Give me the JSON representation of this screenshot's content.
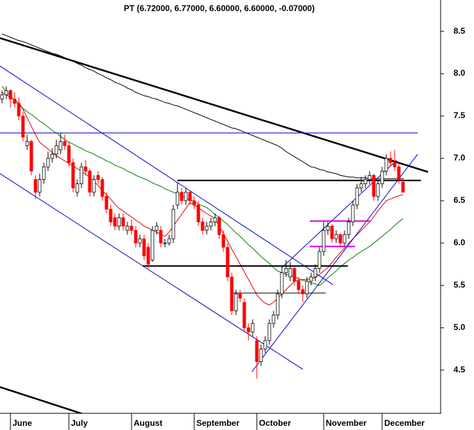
{
  "chart_data": {
    "type": "candlestick",
    "title": "PT (6.72000, 6.77000, 6.60000, 6.60000, -0.07000)",
    "categories": [
      null,
      null,
      "June",
      null,
      null,
      null,
      null,
      null,
      null,
      null,
      null,
      null,
      null,
      null,
      null,
      null,
      "July",
      null,
      null,
      null,
      null,
      null,
      null,
      null,
      null,
      null,
      null,
      null,
      null,
      null,
      null,
      "August",
      null,
      null,
      null,
      null,
      null,
      null,
      null,
      null,
      null,
      null,
      null,
      null,
      null,
      null,
      "September",
      null,
      null,
      null,
      null,
      null,
      null,
      null,
      null,
      null,
      null,
      null,
      null,
      null,
      null,
      "October",
      null,
      null,
      null,
      null,
      null,
      null,
      null,
      null,
      null,
      null,
      null,
      null,
      null,
      null,
      null,
      "November",
      null,
      null,
      null,
      null,
      null,
      null,
      null,
      null,
      null,
      null,
      null,
      null,
      null,
      "December",
      null,
      null,
      null,
      null,
      null
    ],
    "ohlc": [
      [
        7.7,
        7.8,
        7.65,
        7.75
      ],
      [
        7.75,
        7.85,
        7.7,
        7.8
      ],
      [
        7.8,
        7.82,
        7.6,
        7.7
      ],
      [
        7.7,
        7.78,
        7.6,
        7.65
      ],
      [
        7.65,
        7.72,
        7.45,
        7.5
      ],
      [
        7.5,
        7.55,
        7.2,
        7.25
      ],
      [
        7.15,
        7.28,
        7.1,
        7.2
      ],
      [
        7.2,
        7.22,
        6.8,
        6.85
      ],
      [
        6.75,
        6.8,
        6.52,
        6.6
      ],
      [
        6.6,
        6.82,
        6.55,
        6.75
      ],
      [
        6.75,
        6.95,
        6.7,
        6.9
      ],
      [
        6.9,
        7.08,
        6.85,
        7.0
      ],
      [
        7.0,
        7.12,
        6.95,
        7.05
      ],
      [
        7.05,
        7.22,
        7.0,
        7.15
      ],
      [
        7.1,
        7.3,
        7.05,
        7.2
      ],
      [
        7.2,
        7.28,
        7.1,
        7.15
      ],
      [
        7.15,
        7.2,
        6.9,
        6.95
      ],
      [
        6.95,
        7.0,
        6.6,
        6.65
      ],
      [
        6.6,
        6.75,
        6.55,
        6.7
      ],
      [
        6.7,
        6.95,
        6.65,
        6.9
      ],
      [
        6.9,
        6.98,
        6.8,
        6.85
      ],
      [
        6.85,
        6.88,
        6.55,
        6.6
      ],
      [
        6.6,
        6.8,
        6.55,
        6.75
      ],
      [
        6.8,
        6.85,
        6.7,
        6.75
      ],
      [
        6.75,
        6.78,
        6.5,
        6.55
      ],
      [
        6.55,
        6.6,
        6.35,
        6.4
      ],
      [
        6.4,
        6.45,
        6.2,
        6.25
      ],
      [
        6.3,
        6.35,
        6.15,
        6.2
      ],
      [
        6.2,
        6.35,
        6.15,
        6.3
      ],
      [
        6.3,
        6.35,
        6.15,
        6.2
      ],
      [
        6.15,
        6.25,
        6.1,
        6.2
      ],
      [
        6.2,
        6.28,
        6.1,
        6.15
      ],
      [
        6.15,
        6.2,
        5.95,
        6.0
      ],
      [
        6.0,
        6.1,
        5.95,
        6.05
      ],
      [
        6.05,
        6.1,
        5.8,
        5.85
      ],
      [
        5.95,
        6.0,
        5.7,
        5.75
      ],
      [
        5.8,
        6.2,
        5.78,
        6.15
      ],
      [
        6.15,
        6.25,
        6.1,
        6.2
      ],
      [
        6.15,
        6.2,
        5.95,
        6.0
      ],
      [
        6.0,
        6.05,
        5.95,
        6.0
      ],
      [
        6.0,
        6.1,
        5.97,
        6.05
      ],
      [
        6.05,
        6.45,
        6.0,
        6.4
      ],
      [
        6.45,
        6.72,
        6.4,
        6.6
      ],
      [
        6.6,
        6.65,
        6.45,
        6.5
      ],
      [
        6.5,
        6.65,
        6.45,
        6.6
      ],
      [
        6.6,
        6.62,
        6.45,
        6.5
      ],
      [
        6.5,
        6.55,
        6.4,
        6.45
      ],
      [
        6.45,
        6.5,
        6.2,
        6.25
      ],
      [
        6.25,
        6.3,
        6.1,
        6.15
      ],
      [
        6.15,
        6.25,
        6.1,
        6.2
      ],
      [
        6.2,
        6.3,
        6.15,
        6.25
      ],
      [
        6.25,
        6.35,
        6.2,
        6.3
      ],
      [
        6.3,
        6.32,
        6.05,
        6.1
      ],
      [
        6.1,
        6.15,
        5.9,
        5.95
      ],
      [
        5.95,
        6.0,
        5.55,
        5.6
      ],
      [
        5.6,
        5.65,
        5.15,
        5.2
      ],
      [
        5.2,
        5.45,
        5.15,
        5.4
      ],
      [
        5.4,
        5.45,
        5.3,
        5.35
      ],
      [
        5.3,
        5.35,
        4.95,
        5.0
      ],
      [
        5.0,
        5.05,
        4.85,
        4.95
      ],
      [
        4.95,
        5.1,
        4.9,
        5.05
      ],
      [
        4.85,
        4.9,
        4.4,
        4.6
      ],
      [
        4.6,
        4.8,
        4.55,
        4.75
      ],
      [
        4.75,
        4.9,
        4.7,
        4.85
      ],
      [
        4.85,
        5.1,
        4.8,
        5.05
      ],
      [
        5.05,
        5.2,
        5.0,
        5.15
      ],
      [
        5.15,
        5.45,
        5.1,
        5.4
      ],
      [
        5.4,
        5.72,
        5.35,
        5.65
      ],
      [
        5.65,
        5.8,
        5.6,
        5.7
      ],
      [
        5.6,
        5.78,
        5.55,
        5.7
      ],
      [
        5.7,
        5.72,
        5.5,
        5.55
      ],
      [
        5.55,
        5.6,
        5.4,
        5.45
      ],
      [
        5.45,
        5.5,
        5.3,
        5.4
      ],
      [
        5.4,
        5.6,
        5.35,
        5.55
      ],
      [
        5.55,
        5.65,
        5.5,
        5.6
      ],
      [
        5.6,
        5.75,
        5.55,
        5.7
      ],
      [
        5.7,
        5.95,
        5.65,
        5.9
      ],
      [
        5.9,
        6.25,
        5.85,
        6.15
      ],
      [
        6.15,
        6.25,
        6.1,
        6.2
      ],
      [
        6.2,
        6.22,
        6.0,
        6.05
      ],
      [
        6.05,
        6.15,
        6.0,
        6.1
      ],
      [
        6.1,
        6.12,
        5.95,
        6.0
      ],
      [
        6.0,
        6.15,
        5.97,
        6.1
      ],
      [
        6.1,
        6.3,
        6.05,
        6.25
      ],
      [
        6.25,
        6.5,
        6.2,
        6.45
      ],
      [
        6.45,
        6.7,
        6.4,
        6.65
      ],
      [
        6.65,
        6.78,
        6.6,
        6.7
      ],
      [
        6.7,
        6.8,
        6.65,
        6.75
      ],
      [
        6.75,
        6.85,
        6.7,
        6.8
      ],
      [
        6.8,
        6.82,
        6.5,
        6.55
      ],
      [
        6.55,
        6.75,
        6.5,
        6.7
      ],
      [
        6.7,
        6.9,
        6.65,
        6.85
      ],
      [
        6.85,
        7.05,
        6.8,
        7.0
      ],
      [
        7.0,
        7.08,
        6.9,
        6.95
      ],
      [
        6.95,
        7.1,
        6.85,
        6.9
      ],
      [
        6.9,
        6.95,
        6.7,
        6.75
      ],
      [
        6.72,
        6.77,
        6.6,
        6.6
      ]
    ],
    "up_color": "#ffffff",
    "down_color": "#ff0000",
    "series": [
      {
        "color": "#000000",
        "values": [
          8.47,
          8.45,
          8.43,
          8.41,
          8.39,
          8.38,
          8.36,
          8.34,
          8.32,
          8.3,
          8.28,
          8.26,
          8.24,
          8.23,
          8.21,
          8.19,
          8.17,
          8.15,
          8.12,
          8.1,
          8.07,
          8.05,
          8.03,
          8.0,
          7.98,
          7.95,
          7.93,
          7.9,
          7.88,
          7.86,
          7.83,
          7.81,
          7.78,
          7.76,
          7.74,
          7.73,
          7.71,
          7.7,
          7.68,
          7.66,
          7.65,
          7.63,
          7.62,
          7.6,
          7.58,
          7.56,
          7.54,
          7.52,
          7.5,
          7.48,
          7.46,
          7.44,
          7.42,
          7.4,
          7.38,
          7.36,
          7.35,
          7.33,
          7.31,
          7.29,
          7.27,
          7.25,
          7.23,
          7.21,
          7.19,
          7.17,
          7.15,
          7.12,
          7.08,
          7.05,
          7.02,
          6.99,
          6.96,
          6.93,
          6.9,
          6.89,
          6.87,
          6.86,
          6.84,
          6.83,
          6.82,
          6.8,
          6.79,
          6.78,
          6.78,
          6.77,
          6.77,
          6.77,
          6.76,
          6.76,
          6.76,
          6.76,
          6.76,
          6.76,
          6.76,
          6.76,
          6.76
        ]
      },
      {
        "color": "#008000",
        "values": [
          7.85,
          7.79,
          7.74,
          7.68,
          7.63,
          7.59,
          7.55,
          7.52,
          7.48,
          7.44,
          7.41,
          7.37,
          7.33,
          7.3,
          7.26,
          7.22,
          7.19,
          7.17,
          7.14,
          7.12,
          7.09,
          7.07,
          7.05,
          7.02,
          7.0,
          6.97,
          6.95,
          6.92,
          6.9,
          6.88,
          6.85,
          6.83,
          6.8,
          6.78,
          6.76,
          6.74,
          6.71,
          6.69,
          6.67,
          6.64,
          6.62,
          6.6,
          6.58,
          6.56,
          6.53,
          6.51,
          6.49,
          6.46,
          6.44,
          6.42,
          6.38,
          6.34,
          6.3,
          6.26,
          6.22,
          6.17,
          6.12,
          6.08,
          6.03,
          5.98,
          5.94,
          5.89,
          5.84,
          5.8,
          5.76,
          5.71,
          5.67,
          5.65,
          5.63,
          5.62,
          5.6,
          5.58,
          5.56,
          5.55,
          5.53,
          5.52,
          5.5,
          5.54,
          5.59,
          5.63,
          5.67,
          5.72,
          5.76,
          5.8,
          5.83,
          5.87,
          5.9,
          5.93,
          5.96,
          6.0,
          6.04,
          6.08,
          6.12,
          6.16,
          6.21,
          6.25,
          6.29
        ]
      },
      {
        "color": "#e00000",
        "values": [
          7.78,
          7.75,
          7.72,
          7.69,
          7.66,
          7.58,
          7.48,
          7.38,
          7.28,
          7.19,
          7.15,
          7.11,
          7.07,
          7.03,
          7.0,
          6.97,
          6.94,
          6.91,
          6.88,
          6.85,
          6.81,
          6.78,
          6.73,
          6.68,
          6.62,
          6.57,
          6.52,
          6.46,
          6.41,
          6.38,
          6.34,
          6.31,
          6.27,
          6.24,
          6.2,
          6.18,
          6.15,
          6.13,
          6.1,
          6.08,
          6.13,
          6.2,
          6.27,
          6.34,
          6.41,
          6.48,
          6.45,
          6.42,
          6.38,
          6.35,
          6.32,
          6.29,
          6.2,
          6.11,
          6.02,
          5.93,
          5.84,
          5.75,
          5.66,
          5.57,
          5.48,
          5.39,
          5.33,
          5.29,
          5.27,
          5.3,
          5.35,
          5.4,
          5.45,
          5.5,
          5.55,
          5.56,
          5.57,
          5.57,
          5.58,
          5.59,
          5.63,
          5.67,
          5.71,
          5.77,
          5.83,
          5.89,
          5.94,
          6.0,
          6.05,
          6.1,
          6.15,
          6.2,
          6.25,
          6.31,
          6.38,
          6.44,
          6.5,
          6.52,
          6.54,
          6.56,
          6.57
        ]
      }
    ],
    "lines": [
      {
        "color": "#000000",
        "width": 2.5,
        "x": [
          -0.5,
          102
        ],
        "y": [
          8.42,
          6.84
        ]
      },
      {
        "color": "#000000",
        "width": 2.5,
        "x": [
          -0.5,
          19.5
        ],
        "y": [
          4.3,
          3.98
        ]
      },
      {
        "color": "#0000cc",
        "width": 1,
        "x": [
          -0.5,
          99.5
        ],
        "y": [
          7.3,
          7.3
        ]
      },
      {
        "color": "#0000cc",
        "width": 1,
        "x": [
          -0.5,
          79.2
        ],
        "y": [
          8.09,
          5.51
        ]
      },
      {
        "color": "#0000cc",
        "width": 1,
        "x": [
          -0.5,
          72
        ],
        "y": [
          6.82,
          4.51
        ]
      },
      {
        "color": "#0000cc",
        "width": 1,
        "x": [
          59.8,
          99.5
        ],
        "y": [
          4.48,
          7.05
        ]
      },
      {
        "color": "#0000cc",
        "width": 1,
        "x": [
          67,
          94.5
        ],
        "y": [
          5.71,
          6.98
        ]
      },
      {
        "color": "#000000",
        "width": 2,
        "x": [
          42,
          100.3
        ],
        "y": [
          6.74,
          6.74
        ]
      },
      {
        "color": "#000000",
        "width": 2,
        "x": [
          33.7,
          82.8
        ],
        "y": [
          5.73,
          5.73
        ]
      },
      {
        "color": "#000000",
        "width": 1,
        "x": [
          55.3,
          77.5
        ],
        "y": [
          5.41,
          5.41
        ]
      },
      {
        "color": "#dd00dd",
        "width": 2,
        "x": [
          73.7,
          88.2
        ],
        "y": [
          6.26,
          6.26
        ]
      },
      {
        "color": "#dd00dd",
        "width": 2,
        "x": [
          73.7,
          84.5
        ],
        "y": [
          5.96,
          5.96
        ]
      }
    ],
    "ylim": [
      3.99,
      8.87
    ],
    "yticks": [
      4.5,
      {
        "value": 5,
        "label": "5.0"
      },
      5.5,
      {
        "value": 6,
        "label": "6.0"
      },
      6.5,
      {
        "value": 7,
        "label": "7.0"
      },
      7.5,
      {
        "value": 8,
        "label": "8.0"
      },
      8.5
    ]
  }
}
